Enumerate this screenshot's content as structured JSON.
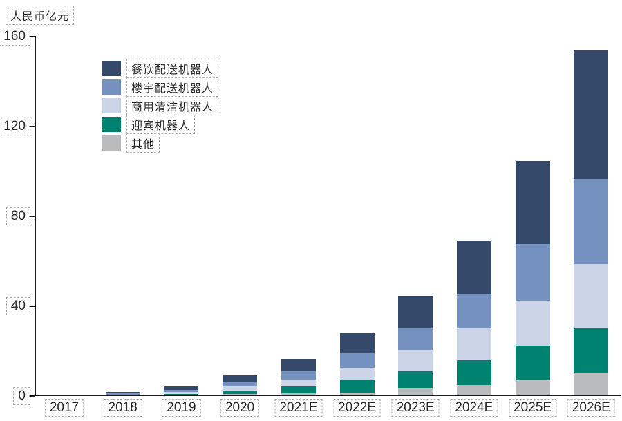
{
  "chart_data": {
    "type": "bar",
    "stacked": true,
    "title": "人民币亿元",
    "categories": [
      "2017",
      "2018",
      "2019",
      "2020",
      "2021E",
      "2022E",
      "2023E",
      "2024E",
      "2025E",
      "2026E"
    ],
    "series": [
      {
        "name": "餐饮配送机器人",
        "color": "#35496a",
        "values": [
          0.1,
          0.6,
          1.6,
          2.6,
          5.1,
          8.8,
          14.4,
          23.9,
          37.1,
          57.0
        ]
      },
      {
        "name": "楼宇配送机器人",
        "color": "#7591bf",
        "values": [
          0.1,
          0.35,
          1.0,
          2.2,
          3.6,
          6.5,
          9.4,
          15.0,
          25.2,
          37.9
        ]
      },
      {
        "name": "商用清洁机器人",
        "color": "#ccd5e8",
        "values": [
          0.05,
          0.2,
          0.8,
          1.8,
          3.1,
          5.7,
          9.5,
          14.1,
          20.0,
          28.7
        ]
      },
      {
        "name": "迎宾机器人",
        "color": "#008271",
        "values": [
          0.03,
          0.15,
          0.5,
          1.7,
          3.1,
          5.6,
          7.4,
          11.1,
          15.2,
          19.7
        ]
      },
      {
        "name": "其他",
        "color": "#b9bbbd",
        "values": [
          0.02,
          0.1,
          0.2,
          0.6,
          1.0,
          1.1,
          3.5,
          4.7,
          6.8,
          10.0
        ]
      }
    ],
    "stack_order_note": "series listed top-of-stack first; 其他 is the bottom segment",
    "y_ticks": [
      "0",
      "40",
      "80",
      "120",
      "160"
    ],
    "ylim": [
      0,
      160
    ],
    "xlabel": "",
    "ylabel": "人民币亿元",
    "legend_position": "upper-left-inside",
    "grid": false,
    "axis_color": "#1a1a1a",
    "annotation_box_color": "#b0b0b0"
  }
}
